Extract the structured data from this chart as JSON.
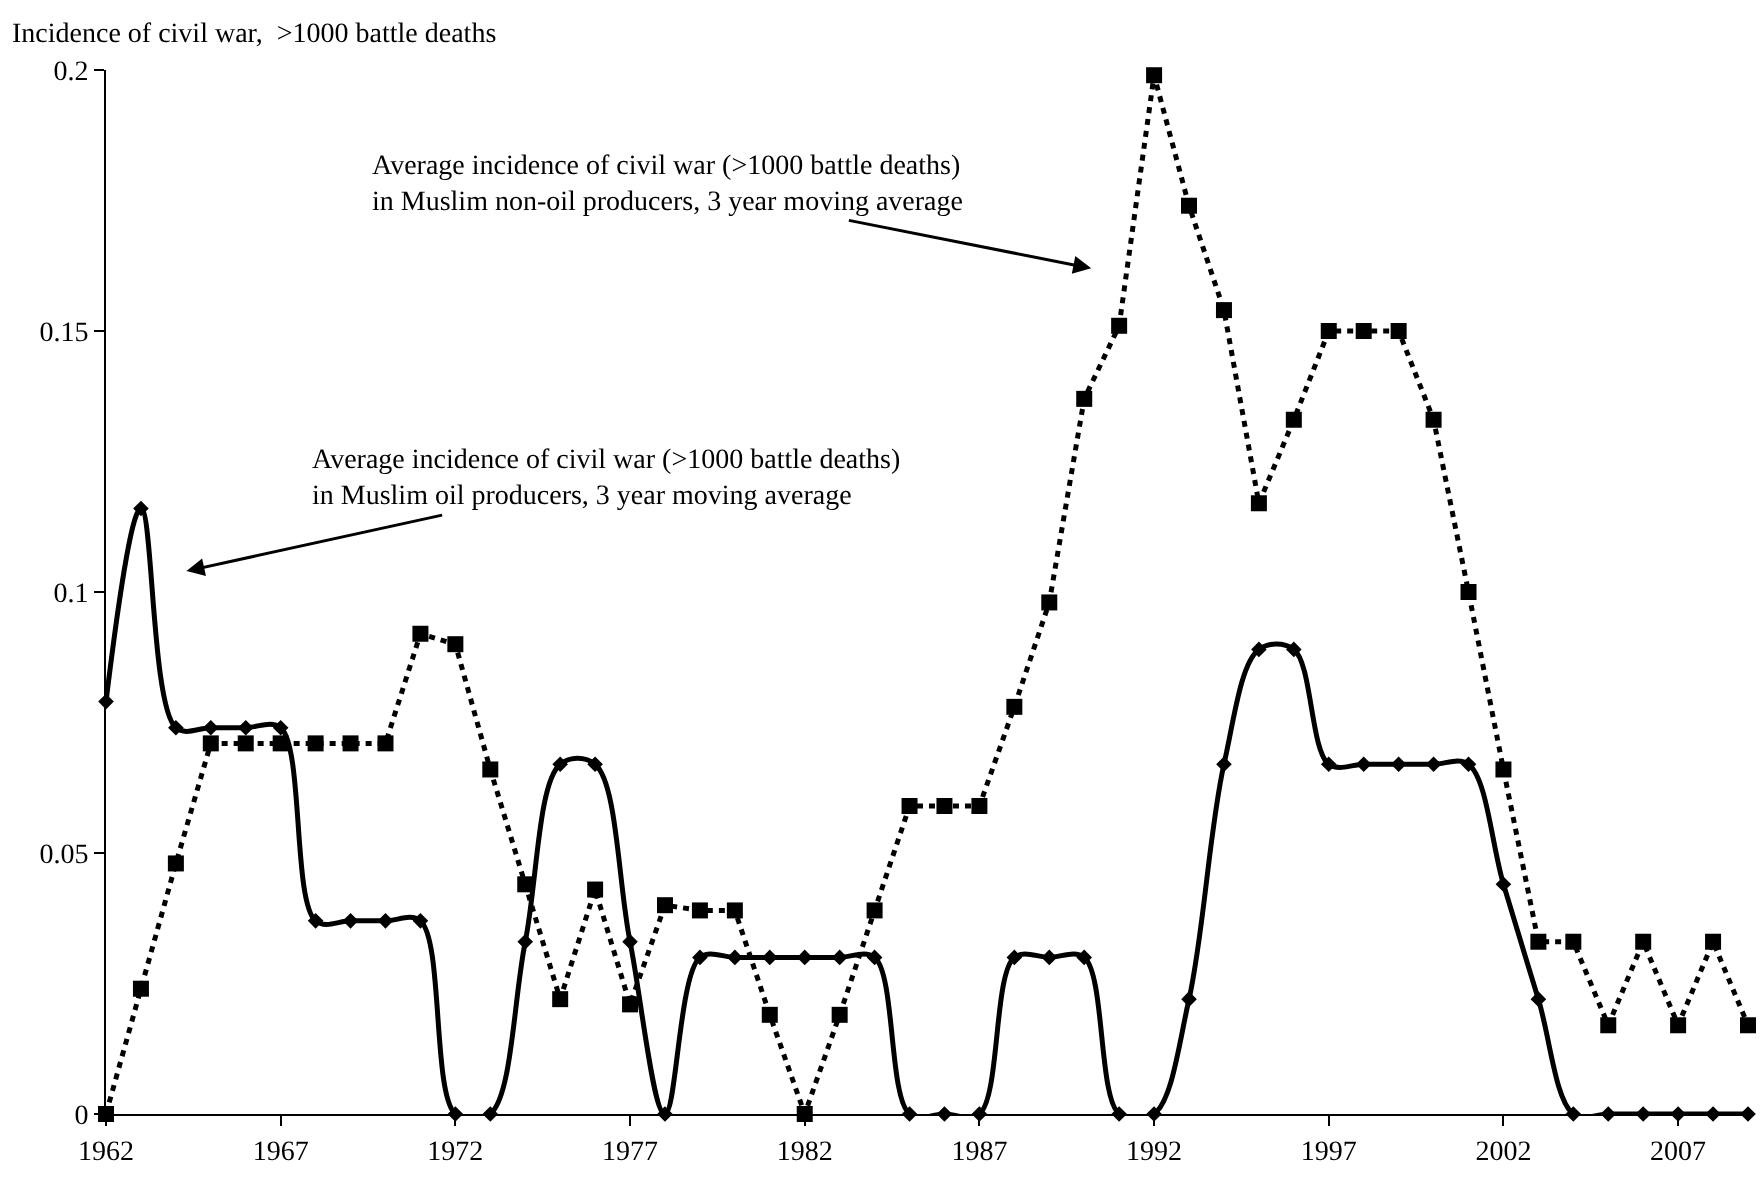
{
  "chart_data": {
    "type": "line",
    "ylabel": "Incidence of civil war,  >1000 battle deaths",
    "x": [
      1962,
      1963,
      1964,
      1965,
      1966,
      1967,
      1968,
      1969,
      1970,
      1971,
      1972,
      1973,
      1974,
      1975,
      1976,
      1977,
      1978,
      1979,
      1980,
      1981,
      1982,
      1983,
      1984,
      1985,
      1986,
      1987,
      1988,
      1989,
      1990,
      1991,
      1992,
      1993,
      1994,
      1995,
      1996,
      1997,
      1998,
      1999,
      2000,
      2001,
      2002,
      2003,
      2004,
      2005,
      2006,
      2007,
      2008,
      2009
    ],
    "series": [
      {
        "color": "#000000",
        "line_style": "solid",
        "marker": "diamond",
        "values": [
          0.079,
          0.116,
          0.074,
          0.074,
          0.074,
          0.074,
          0.037,
          0.037,
          0.037,
          0.037,
          0,
          0,
          0.033,
          0.067,
          0.067,
          0.033,
          0,
          0.03,
          0.03,
          0.03,
          0.03,
          0.03,
          0.03,
          0,
          0,
          0,
          0.03,
          0.03,
          0.03,
          0,
          0,
          0.022,
          0.067,
          0.089,
          0.089,
          0.067,
          0.067,
          0.067,
          0.067,
          0.067,
          0.044,
          0.022,
          0,
          0,
          0,
          0,
          0,
          0
        ]
      },
      {
        "color": "#000000",
        "line_style": "dotted",
        "marker": "square",
        "values": [
          0,
          0.024,
          0.048,
          0.071,
          0.071,
          0.071,
          0.071,
          0.071,
          0.071,
          0.092,
          0.09,
          0.066,
          0.044,
          0.022,
          0.043,
          0.021,
          0.04,
          0.039,
          0.039,
          0.019,
          0,
          0.019,
          0.039,
          0.059,
          0.059,
          0.059,
          0.078,
          0.098,
          0.137,
          0.151,
          0.199,
          0.174,
          0.154,
          0.117,
          0.133,
          0.15,
          0.15,
          0.15,
          0.133,
          0.1,
          0.066,
          0.033,
          0.033,
          0.017,
          0.033,
          0.017,
          0.033,
          0.017
        ]
      }
    ],
    "xlim": [
      1962,
      2009
    ],
    "xticks": [
      1962,
      1967,
      1972,
      1977,
      1982,
      1987,
      1992,
      1997,
      2002,
      2007
    ],
    "ylim": [
      0,
      0.2
    ],
    "yticks": [
      0,
      0.05,
      0.1,
      0.15,
      0.2
    ],
    "annotations": [
      "Average incidence of civil war (>1000 battle deaths)\nin Muslim oil producers, 3 year moving average",
      "Average incidence of civil war (>1000 battle deaths)\nin Muslim non-oil producers, 3 year moving average"
    ]
  }
}
